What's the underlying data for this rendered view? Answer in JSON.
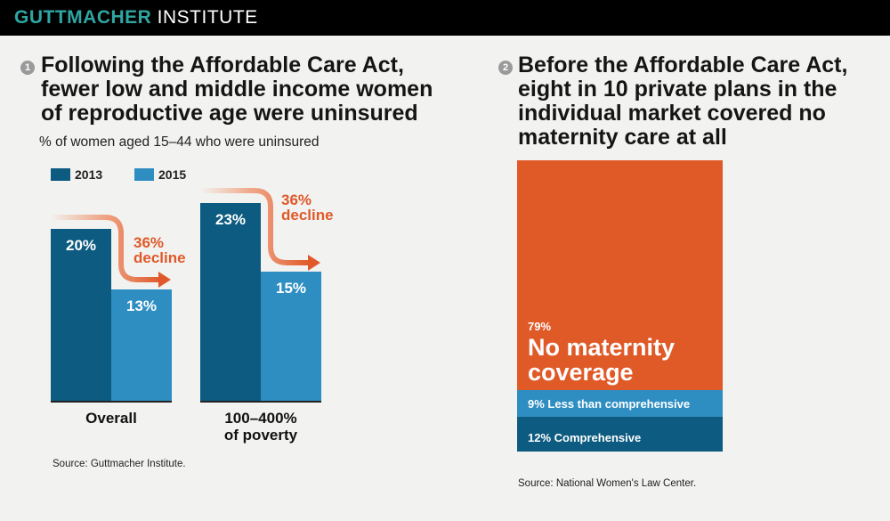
{
  "header": {
    "brand_bold": "GUTTMACHER",
    "brand_light": "INSTITUTE"
  },
  "colors": {
    "accent": "#2fa6a3",
    "series_2013": "#0d5b80",
    "series_2015": "#2e8ec2",
    "decline": "#e0592a",
    "no_coverage": "#e05a28",
    "less_than": "#2e8ec2",
    "comprehensive": "#0d5b80"
  },
  "panel1": {
    "badge": "1",
    "headline": [
      "Following the Affordable Care Act,",
      "fewer low and middle income women",
      "of reproductive age were uninsured"
    ],
    "subtitle": "% of women aged 15–44 who were uninsured",
    "source": "Source: Guttmacher Institute."
  },
  "panel2": {
    "badge": "2",
    "headline": [
      "Before the Affordable Care Act,",
      "eight in 10 private plans in the",
      "individual market covered no",
      "maternity care at all"
    ],
    "source": "Source: National Women's Law Center."
  },
  "chart_data": [
    {
      "type": "bar",
      "categories": [
        "Overall",
        "100–400% of poverty"
      ],
      "category_lines": [
        [
          "Overall"
        ],
        [
          "100–400%",
          "of poverty"
        ]
      ],
      "series": [
        {
          "name": "2013",
          "values": [
            20,
            23
          ],
          "labels": [
            "20%",
            "23%"
          ]
        },
        {
          "name": "2015",
          "values": [
            13,
            15
          ],
          "labels": [
            "13%",
            "15%"
          ]
        }
      ],
      "annotations": [
        {
          "category": "Overall",
          "lines": [
            "36%",
            "decline"
          ]
        },
        {
          "category": "100–400% of poverty",
          "lines": [
            "36%",
            "decline"
          ]
        }
      ],
      "ylim": [
        0,
        23
      ],
      "legend": "top-left",
      "grid": false
    },
    {
      "type": "bar",
      "stacked": true,
      "segments": [
        {
          "name": "No maternity coverage",
          "value": 79,
          "pct": "79%",
          "lines": [
            "No maternity",
            "coverage"
          ]
        },
        {
          "name": "Less than comprehensive",
          "value": 9,
          "pct": "9%",
          "text": "Less than comprehensive"
        },
        {
          "name": "Comprehensive",
          "value": 12,
          "pct": "12%",
          "text": "Comprehensive"
        }
      ],
      "total": 100
    }
  ]
}
